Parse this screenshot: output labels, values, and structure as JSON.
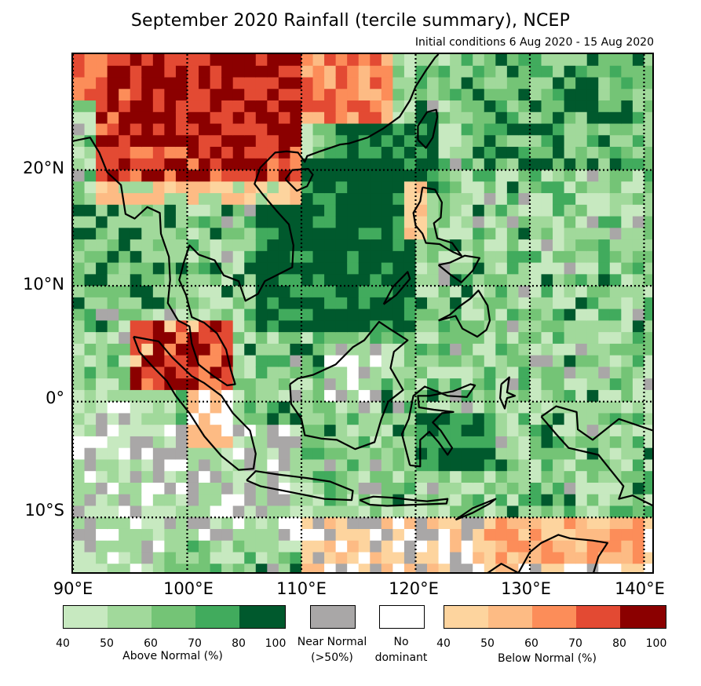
{
  "title": "September 2020 Rainfall (tercile summary), NCEP",
  "subtitle": "Initial conditions 6 Aug 2020 - 15 Aug 2020",
  "map": {
    "lat_labels": [
      "20°N",
      "10°N",
      "0°",
      "10°S"
    ],
    "lon_labels": [
      "90°E",
      "100°E",
      "110°E",
      "120°E",
      "130°E",
      "140°E"
    ],
    "extent": {
      "lon_min": 90,
      "lon_max": 141,
      "lat_min": -15,
      "lat_max": 30
    },
    "colors": {
      "above": [
        "#c7e9c0",
        "#a1d99b",
        "#74c476",
        "#41ab5d",
        "#00592d"
      ],
      "below": [
        "#fdd49e",
        "#fdbb84",
        "#fc8d59",
        "#e34a33",
        "#8b0000"
      ],
      "near_normal": "#a9a7a7",
      "no_dominant": "#ffffff",
      "coastline": "#000000"
    }
  },
  "legend": {
    "above": {
      "ticks": [
        "40",
        "50",
        "60",
        "70",
        "80",
        "100"
      ],
      "label": "Above Normal (%)"
    },
    "near_normal": {
      "label_line1": "Near Normal",
      "label_line2": "(>50%)"
    },
    "no_dominant": {
      "label_line1": "No",
      "label_line2": "dominant"
    },
    "below": {
      "ticks": [
        "40",
        "50",
        "60",
        "70",
        "80",
        "100"
      ],
      "label": "Below Normal (%)"
    }
  }
}
